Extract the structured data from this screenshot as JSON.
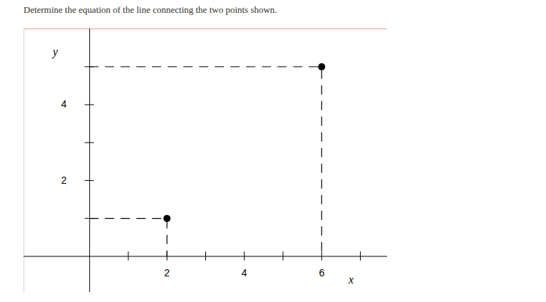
{
  "chart_data": {
    "type": "scatter",
    "title": "Determine the equation of the line connecting the two points shown.",
    "xlabel": "x",
    "ylabel": "y",
    "x": [
      2,
      6
    ],
    "values": [
      1,
      5
    ],
    "color": "#000000",
    "marker": "circle",
    "line_style": "dashed",
    "xlim": [
      -1.7,
      7.7
    ],
    "ylim": [
      -0.95,
      6
    ],
    "xticks": [
      {
        "value": 1,
        "label": null
      },
      2,
      {
        "value": 3,
        "label": null
      },
      4,
      {
        "value": 5,
        "label": null
      },
      6,
      {
        "value": 7,
        "label": null
      }
    ],
    "yticks": [
      {
        "value": 1,
        "label": null
      },
      2,
      {
        "value": 3,
        "label": null
      },
      4,
      {
        "value": 5,
        "label": null
      }
    ],
    "grid": false
  }
}
